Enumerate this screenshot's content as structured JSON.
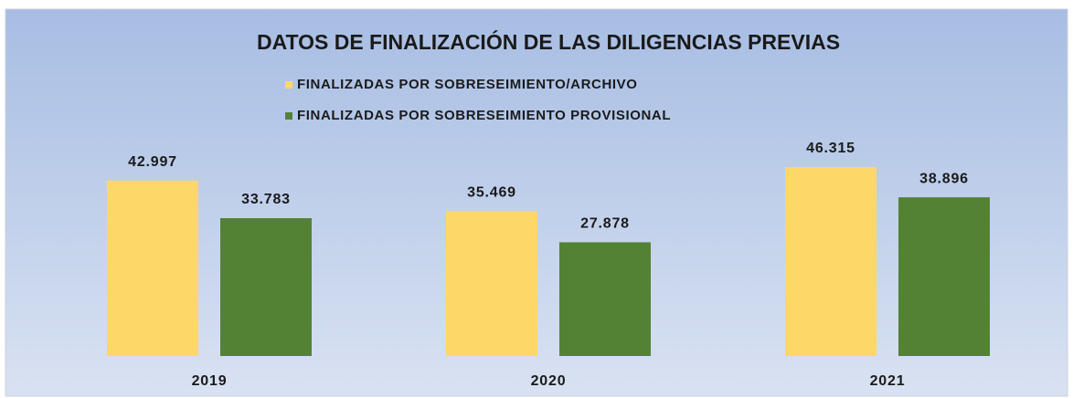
{
  "chart_data": {
    "type": "bar",
    "title": "DATOS DE FINALIZACIÓN DE LAS DILIGENCIAS PREVIAS",
    "categories": [
      "2019",
      "2020",
      "2021"
    ],
    "series": [
      {
        "name": "FINALIZADAS POR SOBRESEIMIENTO/ARCHIVO",
        "color": "#fdd868",
        "values": [
          42997,
          35469,
          46315
        ],
        "value_labels": [
          "42.997",
          "35.469",
          "46.315"
        ]
      },
      {
        "name": "FINALIZADAS POR SOBRESEIMIENTO PROVISIONAL",
        "color": "#548235",
        "values": [
          33783,
          27878,
          38896
        ],
        "value_labels": [
          "33.783",
          "27.878",
          "38.896"
        ]
      }
    ]
  }
}
